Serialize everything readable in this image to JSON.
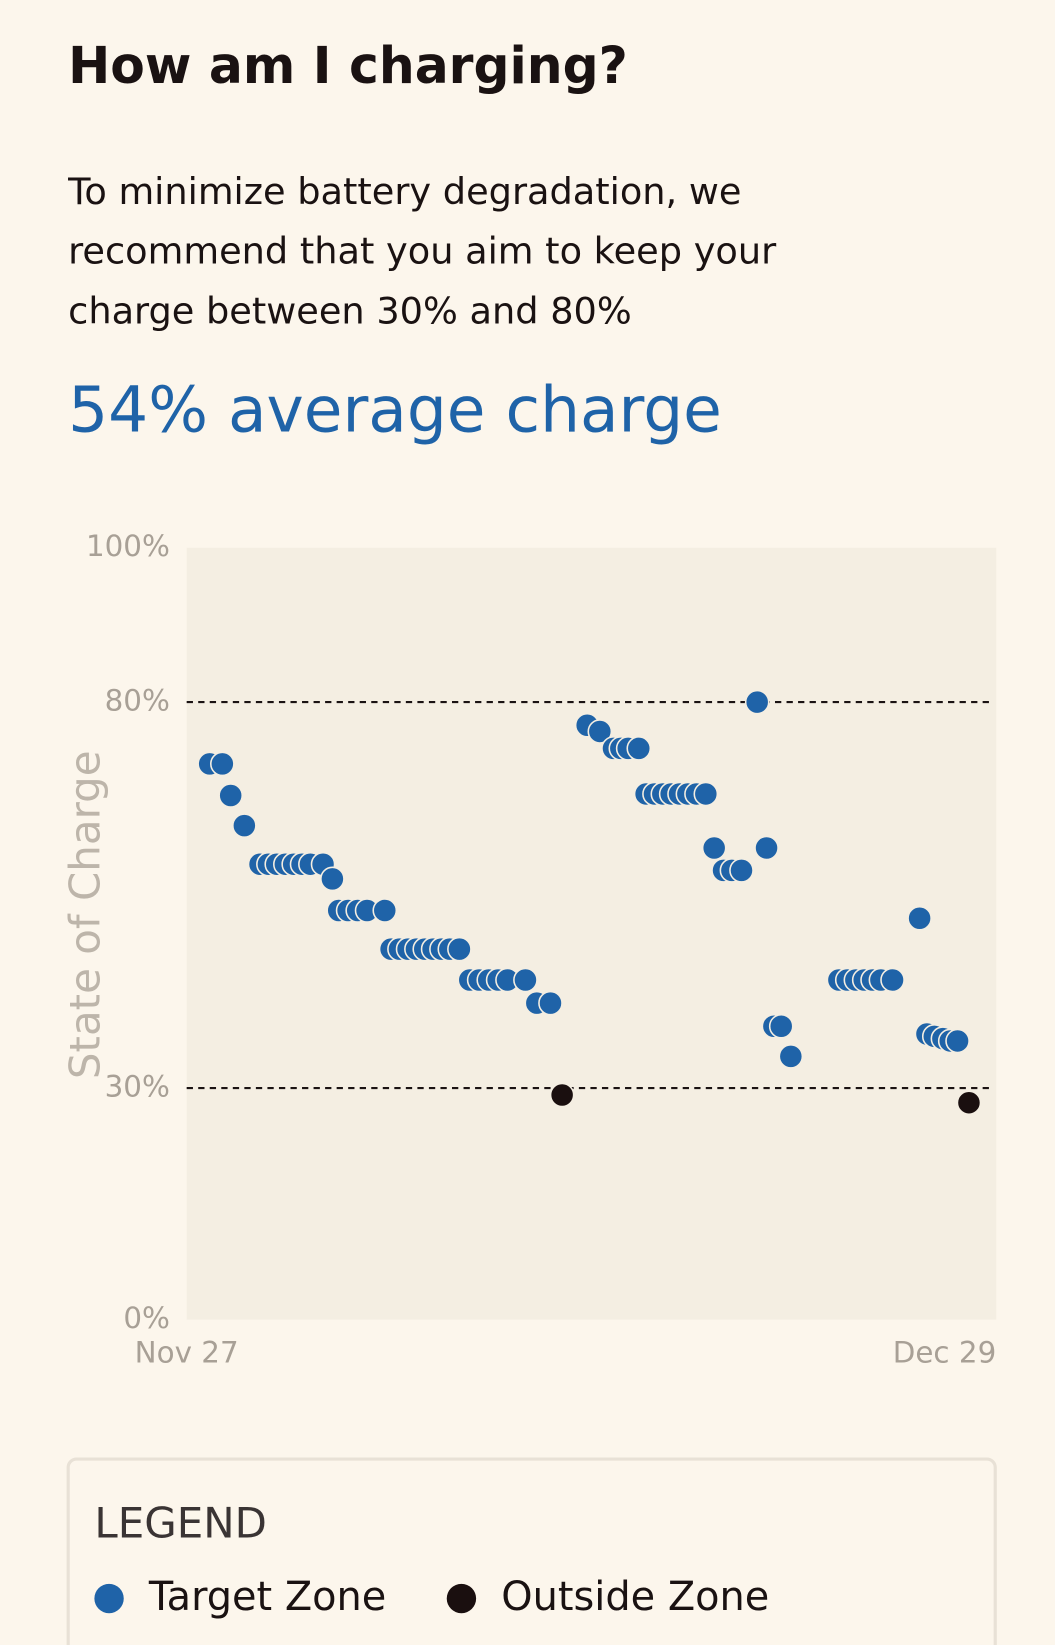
{
  "header": {
    "title": "How am I charging?",
    "description": [
      "To minimize battery degradation, we",
      "recommend that you aim to keep your",
      "charge between 30% and 80%"
    ],
    "summary": "54% average charge"
  },
  "chart_data": {
    "type": "scatter",
    "y_label": "State of Charge",
    "xlim": [
      0,
      32
    ],
    "xticks": [
      {
        "value": 0,
        "label": "Nov 27"
      },
      {
        "value": 32,
        "label": "Dec 29"
      }
    ],
    "ylim": [
      0,
      100
    ],
    "yticks": [
      {
        "value": 0,
        "label": "0%"
      },
      {
        "value": 30,
        "label": "30%"
      },
      {
        "value": 80,
        "label": "80%"
      },
      {
        "value": 100,
        "label": "100%"
      }
    ],
    "reference_lines": [
      30,
      80
    ],
    "legend_title": "LEGEND",
    "series": [
      {
        "name": "Target Zone",
        "color": "#1f63a8",
        "x": [
          0.91,
          1.41,
          1.74,
          2.28,
          2.9,
          3.23,
          3.56,
          3.9,
          4.23,
          4.56,
          4.89,
          5.39,
          5.76,
          6.01,
          6.38,
          6.76,
          7.13,
          7.83,
          8.08,
          8.41,
          8.75,
          9.08,
          9.41,
          9.74,
          10.07,
          10.4,
          10.78,
          11.19,
          11.56,
          11.94,
          12.31,
          12.68,
          13.39,
          13.84,
          14.38,
          15.83,
          16.33,
          16.87,
          17.16,
          17.45,
          17.87,
          18.16,
          18.49,
          18.82,
          19.15,
          19.48,
          19.81,
          20.15,
          20.52,
          20.85,
          21.22,
          21.55,
          21.93,
          22.55,
          22.92,
          23.21,
          23.5,
          23.88,
          25.78,
          26.11,
          26.45,
          26.78,
          27.11,
          27.44,
          27.9,
          28.97,
          29.26,
          29.55,
          29.89,
          30.18,
          30.47
        ],
        "y": [
          72.0,
          72.0,
          67.9,
          64.0,
          59.0,
          59.0,
          59.0,
          59.0,
          59.0,
          59.0,
          59.0,
          59.0,
          57.1,
          53.0,
          53.0,
          53.0,
          53.0,
          53.0,
          48.0,
          48.0,
          48.0,
          48.0,
          48.0,
          48.0,
          48.0,
          48.0,
          48.0,
          44.0,
          44.0,
          44.0,
          44.0,
          44.0,
          44.0,
          41.0,
          41.0,
          77.0,
          76.2,
          74.0,
          74.0,
          74.0,
          74.0,
          68.1,
          68.1,
          68.1,
          68.1,
          68.1,
          68.1,
          68.1,
          68.1,
          61.1,
          58.2,
          58.2,
          58.2,
          80.0,
          61.1,
          38.0,
          38.0,
          34.1,
          44.0,
          44.0,
          44.0,
          44.0,
          44.0,
          44.0,
          44.0,
          52.0,
          37.0,
          36.7,
          36.4,
          36.1,
          36.1
        ]
      },
      {
        "name": "Outside Zone",
        "color": "#1a0f0f",
        "x": [
          14.84,
          30.92
        ],
        "y": [
          29.1,
          28.1
        ]
      }
    ]
  }
}
